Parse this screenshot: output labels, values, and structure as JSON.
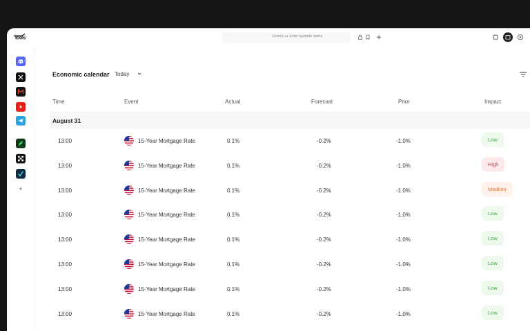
{
  "browser": {
    "logo_text": "tools",
    "address_placeholder": "Search or enter website name"
  },
  "sidebar": {
    "apps": [
      {
        "name": "discord",
        "color": "#5865f2"
      },
      {
        "name": "x",
        "color": "#111111"
      },
      {
        "name": "gmail",
        "color": "#111111"
      },
      {
        "name": "youtube",
        "color": "#e62117"
      },
      {
        "name": "telegram",
        "color": "#2aa3df"
      },
      {
        "name": "green-app",
        "color": "#0c3b1c"
      },
      {
        "name": "okx",
        "color": "#111111"
      },
      {
        "name": "vue-app",
        "color": "#0e2a44"
      }
    ],
    "add_label": "+"
  },
  "calendar": {
    "title": "Economic calendar",
    "filter_value": "Today",
    "columns": {
      "time": "Time",
      "event": "Event",
      "actual": "Actual",
      "forecast": "Forecast",
      "prior": "Prior",
      "impact": "Impact"
    },
    "group_label": "August 31",
    "rows": [
      {
        "time": "13:00",
        "event": "15-Year Mortgage Rate",
        "actual": "0.1%",
        "forecast": "-0.2%",
        "prior": "-1.0%",
        "impact": "Low",
        "impact_level": "low"
      },
      {
        "time": "13:00",
        "event": "15-Year Mortgage Rate",
        "actual": "0.1%",
        "forecast": "-0.2%",
        "prior": "-1.0%",
        "impact": "High",
        "impact_level": "high"
      },
      {
        "time": "13:00",
        "event": "15-Year Mortgage Rate",
        "actual": "0.1%",
        "forecast": "-0.2%",
        "prior": "-1.0%",
        "impact": "Medium",
        "impact_level": "medium"
      },
      {
        "time": "13:00",
        "event": "15-Year Mortgage Rate",
        "actual": "0.1%",
        "forecast": "-0.2%",
        "prior": "-1.0%",
        "impact": "Low",
        "impact_level": "low"
      },
      {
        "time": "13:00",
        "event": "15-Year Mortgage Rate",
        "actual": "0.1%",
        "forecast": "-0.2%",
        "prior": "-1.0%",
        "impact": "Low",
        "impact_level": "low"
      },
      {
        "time": "13:00",
        "event": "15-Year Mortgage Rate",
        "actual": "0.1%",
        "forecast": "-0.2%",
        "prior": "-1.0%",
        "impact": "Low",
        "impact_level": "low"
      },
      {
        "time": "13:00",
        "event": "15-Year Mortgage Rate",
        "actual": "0.1%",
        "forecast": "-0.2%",
        "prior": "-1.0%",
        "impact": "Low",
        "impact_level": "low"
      },
      {
        "time": "13:00",
        "event": "15-Year Mortgage Rate",
        "actual": "0.1%",
        "forecast": "-0.2%",
        "prior": "-1.0%",
        "impact": "Low",
        "impact_level": "low"
      }
    ]
  }
}
